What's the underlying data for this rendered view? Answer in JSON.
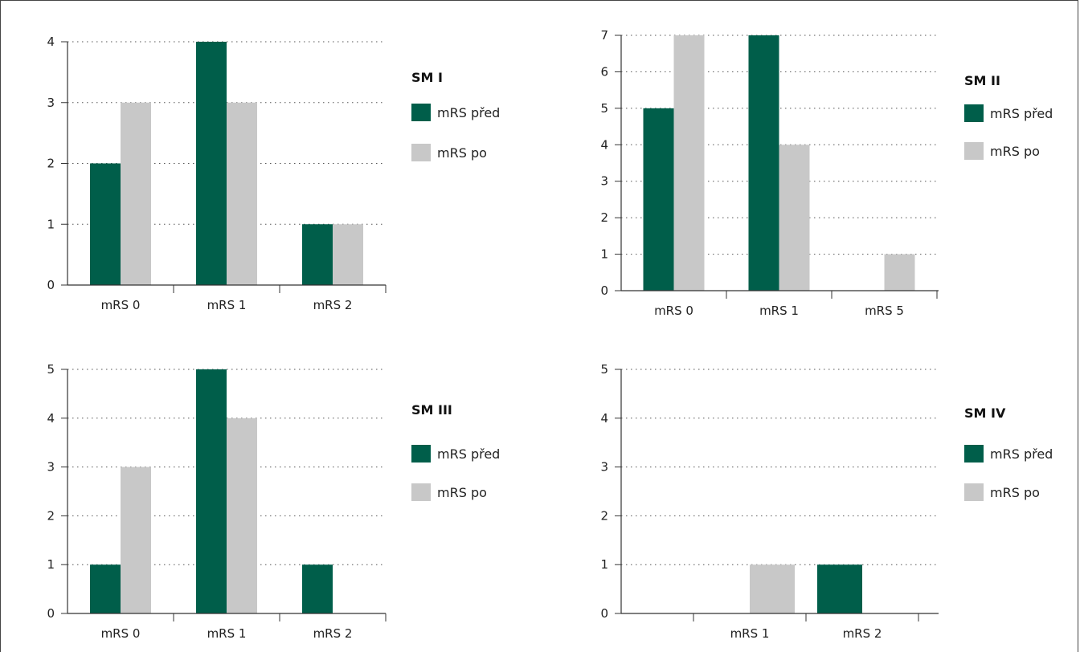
{
  "legend": {
    "before": "mRS před",
    "after": "mRS po"
  },
  "colors": {
    "before": "#005e4a",
    "after": "#c8c8c8"
  },
  "chart_data": [
    {
      "type": "bar",
      "title": "SM I",
      "categories": [
        "mRS 0",
        "mRS 1",
        "mRS 2"
      ],
      "series": [
        {
          "name": "mRS před",
          "values": [
            2,
            4,
            1
          ]
        },
        {
          "name": "mRS po",
          "values": [
            3,
            3,
            1
          ]
        }
      ],
      "ylim": [
        0,
        4
      ],
      "yticks": [
        0,
        1,
        2,
        3,
        4
      ],
      "grid": true,
      "legend_position": "right"
    },
    {
      "type": "bar",
      "title": "SM II",
      "categories": [
        "mRS 0",
        "mRS 1",
        "mRS 5"
      ],
      "series": [
        {
          "name": "mRS před",
          "values": [
            5,
            7,
            0
          ]
        },
        {
          "name": "mRS po",
          "values": [
            7,
            4,
            1
          ]
        }
      ],
      "ylim": [
        0,
        7
      ],
      "yticks": [
        0,
        1,
        2,
        3,
        4,
        5,
        6,
        7
      ],
      "grid": true,
      "legend_position": "right"
    },
    {
      "type": "bar",
      "title": "SM III",
      "categories": [
        "mRS 0",
        "mRS 1",
        "mRS 2"
      ],
      "series": [
        {
          "name": "mRS před",
          "values": [
            1,
            5,
            1
          ]
        },
        {
          "name": "mRS po",
          "values": [
            3,
            4,
            0
          ]
        }
      ],
      "ylim": [
        0,
        5
      ],
      "yticks": [
        0,
        1,
        2,
        3,
        4,
        5
      ],
      "grid": true,
      "legend_position": "right"
    },
    {
      "type": "bar",
      "title": "SM IV",
      "categories": [
        "mRS 1",
        "mRS 2"
      ],
      "series": [
        {
          "name": "mRS před",
          "values": [
            0,
            1
          ]
        },
        {
          "name": "mRS po",
          "values": [
            1,
            0
          ]
        }
      ],
      "ylim": [
        0,
        5
      ],
      "yticks": [
        0,
        1,
        2,
        3,
        4,
        5
      ],
      "grid": true,
      "legend_position": "right"
    }
  ]
}
